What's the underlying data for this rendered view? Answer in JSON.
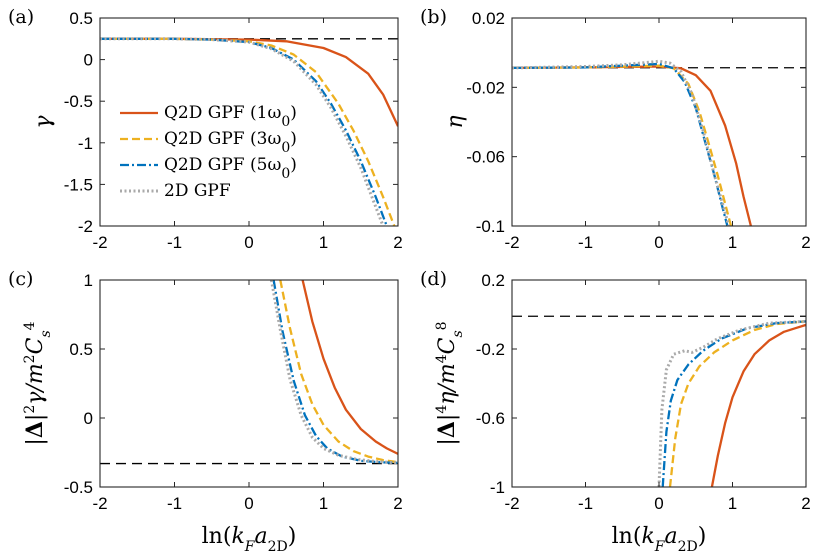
{
  "colors": {
    "q2d_1": "#D95319",
    "q2d_3": "#EDB120",
    "q2d_5": "#0072BD",
    "gpf2d": "#AAAAAA",
    "ref": "#000000"
  },
  "chart_data": [
    {
      "type": "line",
      "panel_label": "(a)",
      "ylabel": "γ",
      "xlabel": "",
      "xlim": [
        -2,
        2
      ],
      "ylim": [
        -2,
        0.5
      ],
      "xticks": [
        "-2",
        "-1",
        "0",
        "1",
        "2"
      ],
      "yticks": [
        "0.5",
        "0",
        "-0.5",
        "-1",
        "-1.5",
        "-2"
      ],
      "ytick_values": [
        0.5,
        0,
        -0.5,
        -1,
        -1.5,
        -2
      ],
      "reference_y": 0.25,
      "legend": [
        "Q2D GPF (1ω₀)",
        "Q2D GPF (3ω₀)",
        "Q2D GPF (5ω₀)",
        "2D GPF"
      ],
      "legend_position": "left",
      "series": [
        {
          "name": "Q2D GPF (1ω₀)",
          "style": "solid",
          "color_key": "q2d_1",
          "x": [
            -2,
            -1,
            0,
            0.5,
            1,
            1.3,
            1.6,
            1.8,
            2.0
          ],
          "y": [
            0.25,
            0.25,
            0.24,
            0.22,
            0.14,
            0.03,
            -0.17,
            -0.42,
            -0.8
          ]
        },
        {
          "name": "Q2D GPF (3ω₀)",
          "style": "dashed",
          "color_key": "q2d_3",
          "x": [
            -2,
            -1,
            -0.5,
            0,
            0.3,
            0.6,
            0.9,
            1.2,
            1.4,
            1.6,
            1.8,
            1.95
          ],
          "y": [
            0.25,
            0.25,
            0.24,
            0.22,
            0.17,
            0.06,
            -0.15,
            -0.53,
            -0.85,
            -1.22,
            -1.65,
            -2.0
          ]
        },
        {
          "name": "Q2D GPF (5ω₀)",
          "style": "dashdot",
          "color_key": "q2d_5",
          "x": [
            -2,
            -1,
            -0.5,
            0,
            0.3,
            0.6,
            0.9,
            1.1,
            1.3,
            1.5,
            1.7,
            1.85
          ],
          "y": [
            0.25,
            0.25,
            0.24,
            0.21,
            0.14,
            0.0,
            -0.26,
            -0.53,
            -0.85,
            -1.22,
            -1.65,
            -2.0
          ]
        },
        {
          "name": "2D GPF",
          "style": "dotted",
          "color_key": "gpf2d",
          "x": [
            -2,
            -1,
            -0.5,
            0,
            0.3,
            0.6,
            0.9,
            1.1,
            1.3,
            1.5,
            1.65,
            1.8
          ],
          "y": [
            0.25,
            0.25,
            0.24,
            0.21,
            0.13,
            -0.02,
            -0.3,
            -0.58,
            -0.92,
            -1.3,
            -1.65,
            -2.0
          ]
        }
      ]
    },
    {
      "type": "line",
      "panel_label": "(b)",
      "ylabel": "η",
      "xlabel": "",
      "xlim": [
        -2,
        2
      ],
      "ylim": [
        -0.1,
        0.02
      ],
      "xticks": [
        "-2",
        "-1",
        "0",
        "1",
        "2"
      ],
      "yticks": [
        "0.02",
        "-0.02",
        "-0.06",
        "-0.1"
      ],
      "ytick_values": [
        0.02,
        -0.02,
        -0.06,
        -0.1
      ],
      "reference_y": -0.0087,
      "series": [
        {
          "name": "Q2D GPF (1ω₀)",
          "style": "solid",
          "color_key": "q2d_1",
          "x": [
            -2,
            -1,
            0,
            0.3,
            0.5,
            0.7,
            0.9,
            1.05,
            1.15,
            1.25
          ],
          "y": [
            -0.0088,
            -0.0085,
            -0.008,
            -0.009,
            -0.013,
            -0.022,
            -0.042,
            -0.064,
            -0.083,
            -0.1
          ]
        },
        {
          "name": "Q2D GPF (3ω₀)",
          "style": "dashed",
          "color_key": "q2d_3",
          "x": [
            -2,
            -1,
            0,
            0.2,
            0.4,
            0.55,
            0.7,
            0.8,
            0.9,
            0.98
          ],
          "y": [
            -0.0088,
            -0.0085,
            -0.0075,
            -0.009,
            -0.018,
            -0.034,
            -0.056,
            -0.071,
            -0.087,
            -0.1
          ]
        },
        {
          "name": "Q2D GPF (5ω₀)",
          "style": "dashdot",
          "color_key": "q2d_5",
          "x": [
            -2,
            -1,
            0,
            0.2,
            0.35,
            0.5,
            0.65,
            0.75,
            0.85,
            0.93
          ],
          "y": [
            -0.0088,
            -0.0085,
            -0.0065,
            -0.009,
            -0.017,
            -0.032,
            -0.055,
            -0.07,
            -0.087,
            -0.1
          ]
        },
        {
          "name": "2D GPF",
          "style": "dotted",
          "color_key": "gpf2d",
          "x": [
            -2,
            -1,
            -0.5,
            0,
            0.15,
            0.3,
            0.45,
            0.6,
            0.75,
            0.85,
            0.95
          ],
          "y": [
            -0.0088,
            -0.008,
            -0.007,
            -0.005,
            -0.006,
            -0.011,
            -0.024,
            -0.045,
            -0.07,
            -0.085,
            -0.1
          ]
        }
      ]
    },
    {
      "type": "line",
      "panel_label": "(c)",
      "ylabel": "|Δ|²γ/m²C_s⁴",
      "xlabel": "ln(k_F a_2D)",
      "xlim": [
        -2,
        2
      ],
      "ylim": [
        -0.5,
        1
      ],
      "xticks": [
        "-2",
        "-1",
        "0",
        "1",
        "2"
      ],
      "yticks": [
        "1",
        "0.5",
        "0",
        "-0.5"
      ],
      "ytick_values": [
        1,
        0.5,
        0,
        -0.5
      ],
      "reference_y": -0.33,
      "series": [
        {
          "name": "Q2D GPF (1ω₀)",
          "style": "solid",
          "color_key": "q2d_1",
          "x": [
            0.72,
            0.85,
            1.0,
            1.15,
            1.3,
            1.5,
            1.7,
            1.85,
            2.0
          ],
          "y": [
            1.0,
            0.7,
            0.43,
            0.22,
            0.06,
            -0.08,
            -0.17,
            -0.22,
            -0.26
          ]
        },
        {
          "name": "Q2D GPF (3ω₀)",
          "style": "dashed",
          "color_key": "q2d_3",
          "x": [
            0.42,
            0.55,
            0.7,
            0.85,
            1.0,
            1.2,
            1.4,
            1.6,
            1.8,
            2.0
          ],
          "y": [
            1.0,
            0.65,
            0.32,
            0.1,
            -0.05,
            -0.17,
            -0.24,
            -0.28,
            -0.305,
            -0.32
          ]
        },
        {
          "name": "Q2D GPF (5ω₀)",
          "style": "dashdot",
          "color_key": "q2d_5",
          "x": [
            0.33,
            0.45,
            0.6,
            0.75,
            0.9,
            1.05,
            1.25,
            1.5,
            1.75,
            2.0
          ],
          "y": [
            1.0,
            0.63,
            0.27,
            0.02,
            -0.13,
            -0.22,
            -0.28,
            -0.31,
            -0.32,
            -0.325
          ]
        },
        {
          "name": "2D GPF",
          "style": "dotted",
          "color_key": "gpf2d",
          "x": [
            0.3,
            0.42,
            0.55,
            0.7,
            0.85,
            1.0,
            1.2,
            1.45,
            1.7,
            2.0
          ],
          "y": [
            1.0,
            0.64,
            0.28,
            0.02,
            -0.14,
            -0.22,
            -0.27,
            -0.3,
            -0.315,
            -0.325
          ]
        }
      ]
    },
    {
      "type": "line",
      "panel_label": "(d)",
      "ylabel": "|Δ|⁴η/m⁴C_s⁸",
      "xlabel": "ln(k_F a_2D)",
      "xlim": [
        -2,
        2
      ],
      "ylim": [
        -1,
        0.2
      ],
      "xticks": [
        "-2",
        "-1",
        "0",
        "1",
        "2"
      ],
      "yticks": [
        "0.2",
        "-0.2",
        "-0.6",
        "-1"
      ],
      "ytick_values": [
        0.2,
        -0.2,
        -0.6,
        -1
      ],
      "reference_y": -0.01,
      "series": [
        {
          "name": "Q2D GPF (1ω₀)",
          "style": "solid",
          "color_key": "q2d_1",
          "x": [
            0.72,
            0.8,
            0.9,
            1.0,
            1.15,
            1.3,
            1.5,
            1.7,
            1.85,
            2.0
          ],
          "y": [
            -1.0,
            -0.82,
            -0.63,
            -0.48,
            -0.33,
            -0.23,
            -0.15,
            -0.1,
            -0.08,
            -0.06
          ]
        },
        {
          "name": "Q2D GPF (3ω₀)",
          "style": "dashed",
          "color_key": "q2d_3",
          "x": [
            0.15,
            0.22,
            0.3,
            0.4,
            0.55,
            0.75,
            1.0,
            1.3,
            1.6,
            2.0
          ],
          "y": [
            -1.0,
            -0.72,
            -0.52,
            -0.4,
            -0.3,
            -0.22,
            -0.15,
            -0.09,
            -0.055,
            -0.04
          ]
        },
        {
          "name": "Q2D GPF (5ω₀)",
          "style": "dashdot",
          "color_key": "q2d_5",
          "x": [
            0.05,
            0.1,
            0.16,
            0.25,
            0.4,
            0.6,
            0.85,
            1.2,
            1.6,
            2.0
          ],
          "y": [
            -1.0,
            -0.68,
            -0.5,
            -0.38,
            -0.29,
            -0.21,
            -0.14,
            -0.08,
            -0.05,
            -0.04
          ]
        },
        {
          "name": "2D GPF",
          "style": "dotted",
          "color_key": "gpf2d",
          "x": [
            0.0,
            0.04,
            0.1,
            0.2,
            0.35,
            0.45,
            0.6,
            0.8,
            1.1,
            1.5,
            2.0
          ],
          "y": [
            -1.0,
            -0.55,
            -0.32,
            -0.23,
            -0.21,
            -0.22,
            -0.19,
            -0.14,
            -0.09,
            -0.05,
            -0.04
          ]
        }
      ]
    }
  ]
}
